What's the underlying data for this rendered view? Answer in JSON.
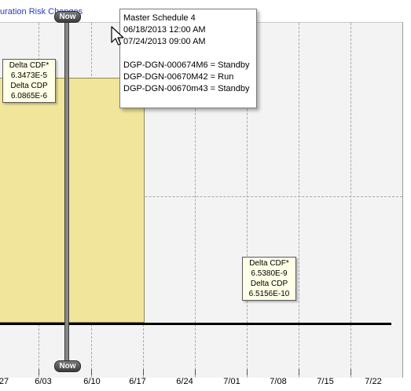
{
  "chart": {
    "title_link": "uration Risk Changes",
    "now_label": "Now",
    "x_ticks": [
      "27",
      "6/03",
      "6/10",
      "6/17",
      "6/24",
      "7/01",
      "7/08",
      "7/15",
      "7/22"
    ]
  },
  "delta_boxes": [
    {
      "l1": "Delta CDF*",
      "l2": "6.3473E-5",
      "l3": "Delta CDP",
      "l4": "6.0865E-6"
    },
    {
      "l1": "Delta CDF*",
      "l2": "6.5380E-9",
      "l3": "Delta CDP",
      "l4": "6.5156E-10"
    }
  ],
  "tooltip": {
    "title": "Master Schedule 4",
    "start": "06/18/2013 12:00 AM",
    "end": "07/24/2013 09:00 AM",
    "items": [
      "DGP-DGN-000674M6 = Standby",
      "DGP-DGN-00670M42 = Run",
      "DGP-DGN-00670m43 = Standby"
    ]
  },
  "icons": {
    "cursor": "arrow-cursor-icon"
  },
  "colors": {
    "risk_band": "#f0e59a",
    "link": "#2a3cb8",
    "plot_bg": "#f3f3f3"
  }
}
